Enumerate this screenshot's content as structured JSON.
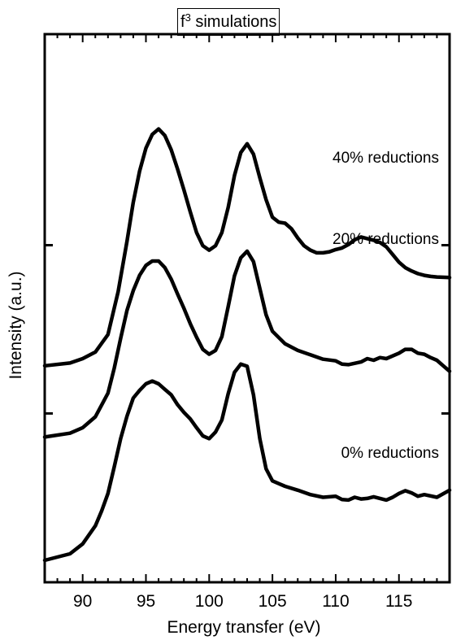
{
  "chart_data": {
    "type": "line",
    "title_main": "f",
    "title_sup": "3",
    "title_rest": " simulations",
    "xlabel": "Energy transfer (eV)",
    "ylabel": "Intensity (a.u.)",
    "xlim": [
      87,
      119
    ],
    "ylim": [
      0,
      1
    ],
    "xticks": [
      90,
      95,
      100,
      105,
      110,
      115
    ],
    "yticks": [
      0.308,
      0.615
    ],
    "grid": false,
    "legend": "none",
    "series": [
      {
        "name": "40% reductions",
        "x": [
          87,
          89,
          90,
          91,
          92,
          92.8,
          93.5,
          94,
          94.5,
          95,
          95.5,
          96,
          96.5,
          97,
          97.5,
          98,
          98.5,
          99,
          99.5,
          100,
          100.5,
          101,
          101.5,
          102,
          102.5,
          103,
          103.5,
          104,
          104.5,
          105,
          105.5,
          106,
          106.5,
          107,
          107.5,
          108,
          108.5,
          109,
          109.5,
          110,
          110.5,
          111,
          111.5,
          112,
          112.5,
          113,
          113.5,
          114,
          114.5,
          115,
          115.5,
          116,
          116.5,
          117,
          117.5,
          118,
          119
        ],
        "y": [
          0.395,
          0.4,
          0.408,
          0.42,
          0.452,
          0.53,
          0.622,
          0.693,
          0.75,
          0.792,
          0.817,
          0.827,
          0.815,
          0.789,
          0.754,
          0.716,
          0.676,
          0.638,
          0.614,
          0.606,
          0.614,
          0.638,
          0.684,
          0.742,
          0.784,
          0.8,
          0.781,
          0.738,
          0.698,
          0.666,
          0.657,
          0.655,
          0.645,
          0.628,
          0.614,
          0.606,
          0.601,
          0.601,
          0.603,
          0.607,
          0.61,
          0.616,
          0.625,
          0.63,
          0.627,
          0.624,
          0.62,
          0.612,
          0.598,
          0.584,
          0.574,
          0.568,
          0.563,
          0.56,
          0.558,
          0.557,
          0.556
        ]
      },
      {
        "name": "20% reductions",
        "x": [
          87,
          89,
          90,
          91,
          92,
          92.5,
          93,
          93.5,
          94,
          94.5,
          95,
          95.5,
          96,
          96.5,
          97,
          97.5,
          98,
          98.5,
          99,
          99.5,
          100,
          100.5,
          101,
          101.5,
          102,
          102.5,
          103,
          103.5,
          104,
          104.5,
          105,
          106,
          107,
          108,
          109,
          110,
          110.5,
          111,
          112,
          112.5,
          113,
          113.5,
          114,
          115,
          115.5,
          116,
          116.5,
          117,
          117.5,
          118,
          118.5,
          119
        ],
        "y": [
          0.265,
          0.272,
          0.282,
          0.302,
          0.345,
          0.391,
          0.445,
          0.496,
          0.532,
          0.56,
          0.578,
          0.586,
          0.586,
          0.574,
          0.553,
          0.526,
          0.5,
          0.472,
          0.447,
          0.425,
          0.416,
          0.423,
          0.448,
          0.503,
          0.559,
          0.592,
          0.604,
          0.585,
          0.536,
          0.488,
          0.458,
          0.435,
          0.423,
          0.415,
          0.407,
          0.404,
          0.398,
          0.397,
          0.402,
          0.408,
          0.405,
          0.41,
          0.408,
          0.418,
          0.425,
          0.425,
          0.418,
          0.416,
          0.41,
          0.405,
          0.395,
          0.385
        ]
      },
      {
        "name": "0% reductions",
        "x": [
          87,
          89,
          90,
          91,
          91.5,
          92,
          92.5,
          93,
          93.5,
          94,
          94.5,
          95,
          95.5,
          96,
          96.5,
          97,
          97.5,
          98,
          98.5,
          99,
          99.5,
          100,
          100.5,
          101,
          101.5,
          102,
          102.5,
          103,
          103.5,
          104,
          104.5,
          105,
          105.5,
          106,
          107,
          108,
          109,
          110,
          110.5,
          111,
          111.5,
          112,
          112.5,
          113,
          114,
          114.5,
          115,
          115.5,
          116,
          116.5,
          117,
          118,
          119
        ],
        "y": [
          0.04,
          0.052,
          0.07,
          0.103,
          0.13,
          0.162,
          0.211,
          0.262,
          0.303,
          0.336,
          0.35,
          0.362,
          0.367,
          0.362,
          0.352,
          0.342,
          0.324,
          0.31,
          0.298,
          0.282,
          0.267,
          0.262,
          0.274,
          0.296,
          0.344,
          0.383,
          0.398,
          0.394,
          0.342,
          0.262,
          0.207,
          0.185,
          0.18,
          0.175,
          0.168,
          0.16,
          0.155,
          0.157,
          0.151,
          0.15,
          0.155,
          0.152,
          0.153,
          0.156,
          0.15,
          0.155,
          0.162,
          0.167,
          0.163,
          0.157,
          0.16,
          0.155,
          0.168
        ]
      }
    ]
  }
}
